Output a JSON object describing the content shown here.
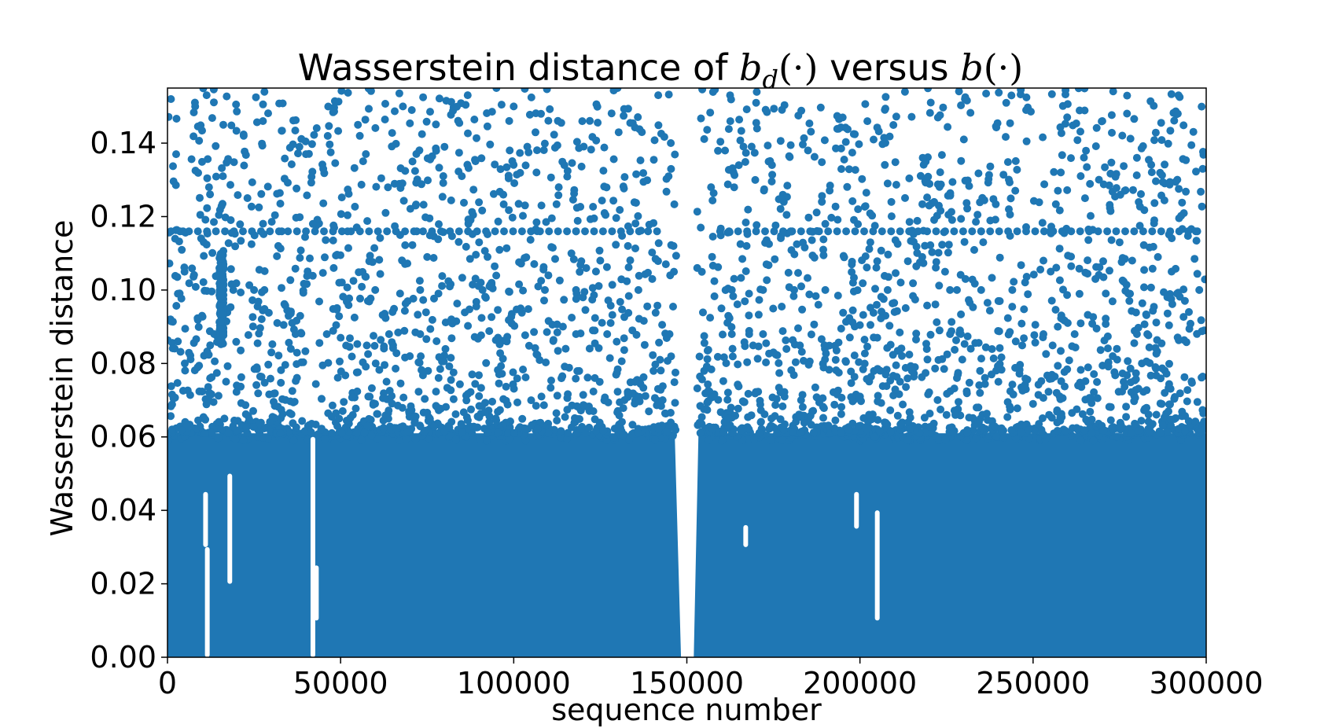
{
  "chart_data": {
    "type": "scatter",
    "title": {
      "prefix": "Wasserstein distance of ",
      "math1_base": "b",
      "math1_sub": "d",
      "math1_args": "(·)",
      "middle": " versus ",
      "math2_base": "b",
      "math2_args": "(·)"
    },
    "xlabel": "sequence number",
    "ylabel": "Wasserstein distance",
    "xlim": [
      0,
      300000
    ],
    "ylim": [
      0,
      0.155
    ],
    "xticks": [
      0,
      50000,
      100000,
      150000,
      200000,
      250000,
      300000
    ],
    "xtick_labels": [
      "0",
      "50000",
      "100000",
      "150000",
      "200000",
      "250000",
      "300000"
    ],
    "yticks": [
      0.0,
      0.02,
      0.04,
      0.06,
      0.08,
      0.1,
      0.12,
      0.14
    ],
    "ytick_labels": [
      "0.00",
      "0.02",
      "0.04",
      "0.06",
      "0.08",
      "0.10",
      "0.12",
      "0.14"
    ],
    "grid": false,
    "legend": "none",
    "marker_color": "#1f77b4",
    "series": [
      {
        "description_of_distribution": "dense band of points covering y 0 to ~0.061 across nearly all sequence numbers",
        "dense_band": {
          "x_range": [
            0,
            300000
          ],
          "y_range": [
            0,
            0.061
          ]
        },
        "gap_near_x": 150000,
        "sparse_upper_points": {
          "y_range": [
            0.061,
            0.155
          ]
        },
        "horizontal_streak_y": [
          0.116,
          0.088,
          0.1
        ],
        "representative_points": [
          [
            1000,
            0.152
          ],
          [
            2500,
            0.137
          ],
          [
            3000,
            0.099
          ],
          [
            4500,
            0.116
          ],
          [
            5000,
            0.08
          ],
          [
            8000,
            0.15
          ],
          [
            10000,
            0.093
          ],
          [
            12000,
            0.128
          ],
          [
            15000,
            0.106
          ],
          [
            16000,
            0.131
          ],
          [
            20000,
            0.074
          ],
          [
            22000,
            0.142
          ],
          [
            25000,
            0.1
          ],
          [
            28000,
            0.154
          ],
          [
            30000,
            0.083
          ],
          [
            33000,
            0.116
          ],
          [
            36000,
            0.091
          ],
          [
            40000,
            0.137
          ],
          [
            42000,
            0.118
          ],
          [
            45000,
            0.133
          ],
          [
            48000,
            0.106
          ],
          [
            50000,
            0.087
          ],
          [
            52000,
            0.116
          ],
          [
            55000,
            0.145
          ],
          [
            58000,
            0.071
          ],
          [
            60000,
            0.1
          ],
          [
            63000,
            0.121
          ],
          [
            65000,
            0.094
          ],
          [
            68000,
            0.15
          ],
          [
            70000,
            0.082
          ],
          [
            72000,
            0.116
          ],
          [
            75000,
            0.109
          ],
          [
            78000,
            0.068
          ],
          [
            80000,
            0.139
          ],
          [
            82000,
            0.092
          ],
          [
            85000,
            0.131
          ],
          [
            88000,
            0.077
          ],
          [
            90000,
            0.113
          ],
          [
            93000,
            0.101
          ],
          [
            95000,
            0.155
          ],
          [
            98000,
            0.086
          ],
          [
            100000,
            0.15
          ],
          [
            102000,
            0.095
          ],
          [
            105000,
            0.116
          ],
          [
            108000,
            0.071
          ],
          [
            110000,
            0.104
          ],
          [
            113000,
            0.128
          ],
          [
            115000,
            0.084
          ],
          [
            118000,
            0.116
          ],
          [
            120000,
            0.098
          ],
          [
            123000,
            0.067
          ],
          [
            125000,
            0.108
          ],
          [
            128000,
            0.091
          ],
          [
            130000,
            0.155
          ],
          [
            133000,
            0.112
          ],
          [
            135000,
            0.075
          ],
          [
            137000,
            0.143
          ],
          [
            140000,
            0.103
          ],
          [
            143000,
            0.07
          ],
          [
            145000,
            0.088
          ],
          [
            153000,
            0.106
          ],
          [
            155000,
            0.078
          ],
          [
            157000,
            0.128
          ],
          [
            160000,
            0.095
          ],
          [
            162000,
            0.065
          ],
          [
            165000,
            0.134
          ],
          [
            168000,
            0.088
          ],
          [
            170000,
            0.151
          ],
          [
            173000,
            0.107
          ],
          [
            175000,
            0.083
          ],
          [
            178000,
            0.124
          ],
          [
            180000,
            0.116
          ],
          [
            183000,
            0.07
          ],
          [
            185000,
            0.138
          ],
          [
            188000,
            0.096
          ],
          [
            190000,
            0.118
          ],
          [
            193000,
            0.081
          ],
          [
            195000,
            0.147
          ],
          [
            198000,
            0.102
          ],
          [
            200000,
            0.071
          ],
          [
            203000,
            0.113
          ],
          [
            205000,
            0.087
          ],
          [
            208000,
            0.129
          ],
          [
            210000,
            0.094
          ],
          [
            213000,
            0.154
          ],
          [
            215000,
            0.078
          ],
          [
            218000,
            0.109
          ],
          [
            220000,
            0.123
          ],
          [
            223000,
            0.089
          ],
          [
            225000,
            0.066
          ],
          [
            228000,
            0.1
          ],
          [
            230000,
            0.141
          ],
          [
            232000,
            0.084
          ],
          [
            235000,
            0.116
          ],
          [
            238000,
            0.077
          ],
          [
            240000,
            0.097
          ],
          [
            243000,
            0.122
          ],
          [
            245000,
            0.086
          ],
          [
            248000,
            0.149
          ],
          [
            250000,
            0.069
          ],
          [
            253000,
            0.108
          ],
          [
            255000,
            0.116
          ],
          [
            258000,
            0.132
          ],
          [
            260000,
            0.091
          ],
          [
            263000,
            0.074
          ],
          [
            265000,
            0.125
          ],
          [
            268000,
            0.103
          ],
          [
            270000,
            0.146
          ],
          [
            273000,
            0.082
          ],
          [
            275000,
            0.113
          ],
          [
            278000,
            0.099
          ],
          [
            280000,
            0.136
          ],
          [
            283000,
            0.088
          ],
          [
            285000,
            0.119
          ],
          [
            288000,
            0.072
          ],
          [
            290000,
            0.105
          ],
          [
            292000,
            0.153
          ],
          [
            295000,
            0.094
          ],
          [
            297000,
            0.116
          ],
          [
            299000,
            0.133
          ]
        ]
      }
    ]
  }
}
